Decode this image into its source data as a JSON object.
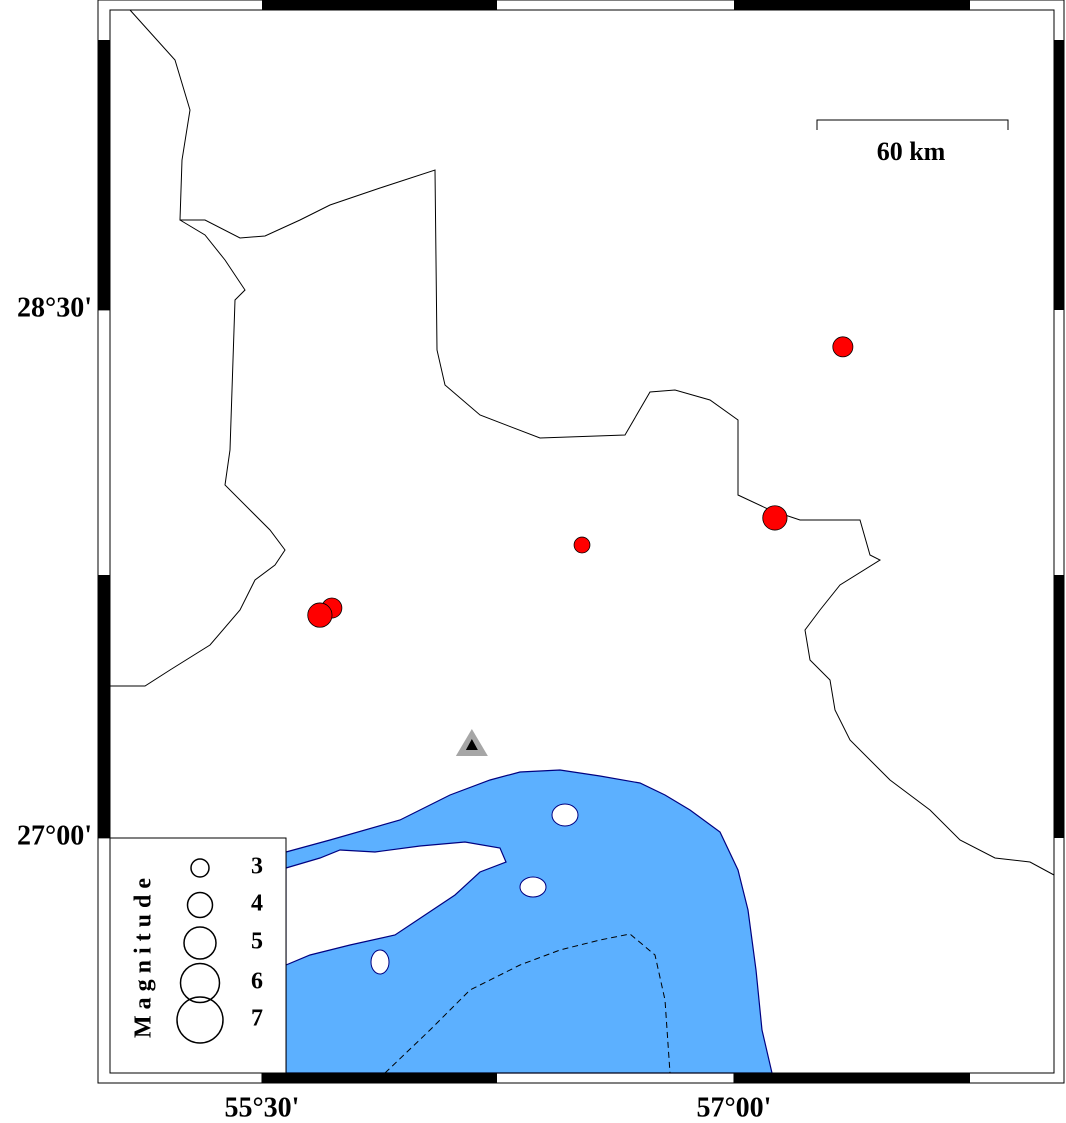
{
  "map": {
    "xlim": [
      55.017,
      58.017
    ],
    "ylim": [
      26.332,
      29.352
    ],
    "xticks": [
      {
        "value": 55.5,
        "label": "55°30'"
      },
      {
        "value": 57,
        "label": "57°00'"
      }
    ],
    "yticks": [
      {
        "value": 27,
        "label": "27°00'"
      },
      {
        "value": 28.5,
        "label": "28°30'"
      }
    ],
    "scale_label": "60 km",
    "event_color": "#ff0000",
    "events": [
      {
        "lon": 57.346,
        "lat": 28.395,
        "mag": 3.3
      },
      {
        "lon": 57.13,
        "lat": 27.909,
        "mag": 3.9
      },
      {
        "lon": 56.517,
        "lat": 27.832,
        "mag": 2.7
      },
      {
        "lon": 55.722,
        "lat": 27.653,
        "mag": 3.3
      },
      {
        "lon": 55.684,
        "lat": 27.633,
        "mag": 3.9
      }
    ],
    "station": {
      "lon": 56.167,
      "lat": 27.264
    },
    "legend": {
      "title": "Magnitude",
      "magnitudes": [
        3,
        4,
        5,
        6,
        7
      ]
    }
  }
}
